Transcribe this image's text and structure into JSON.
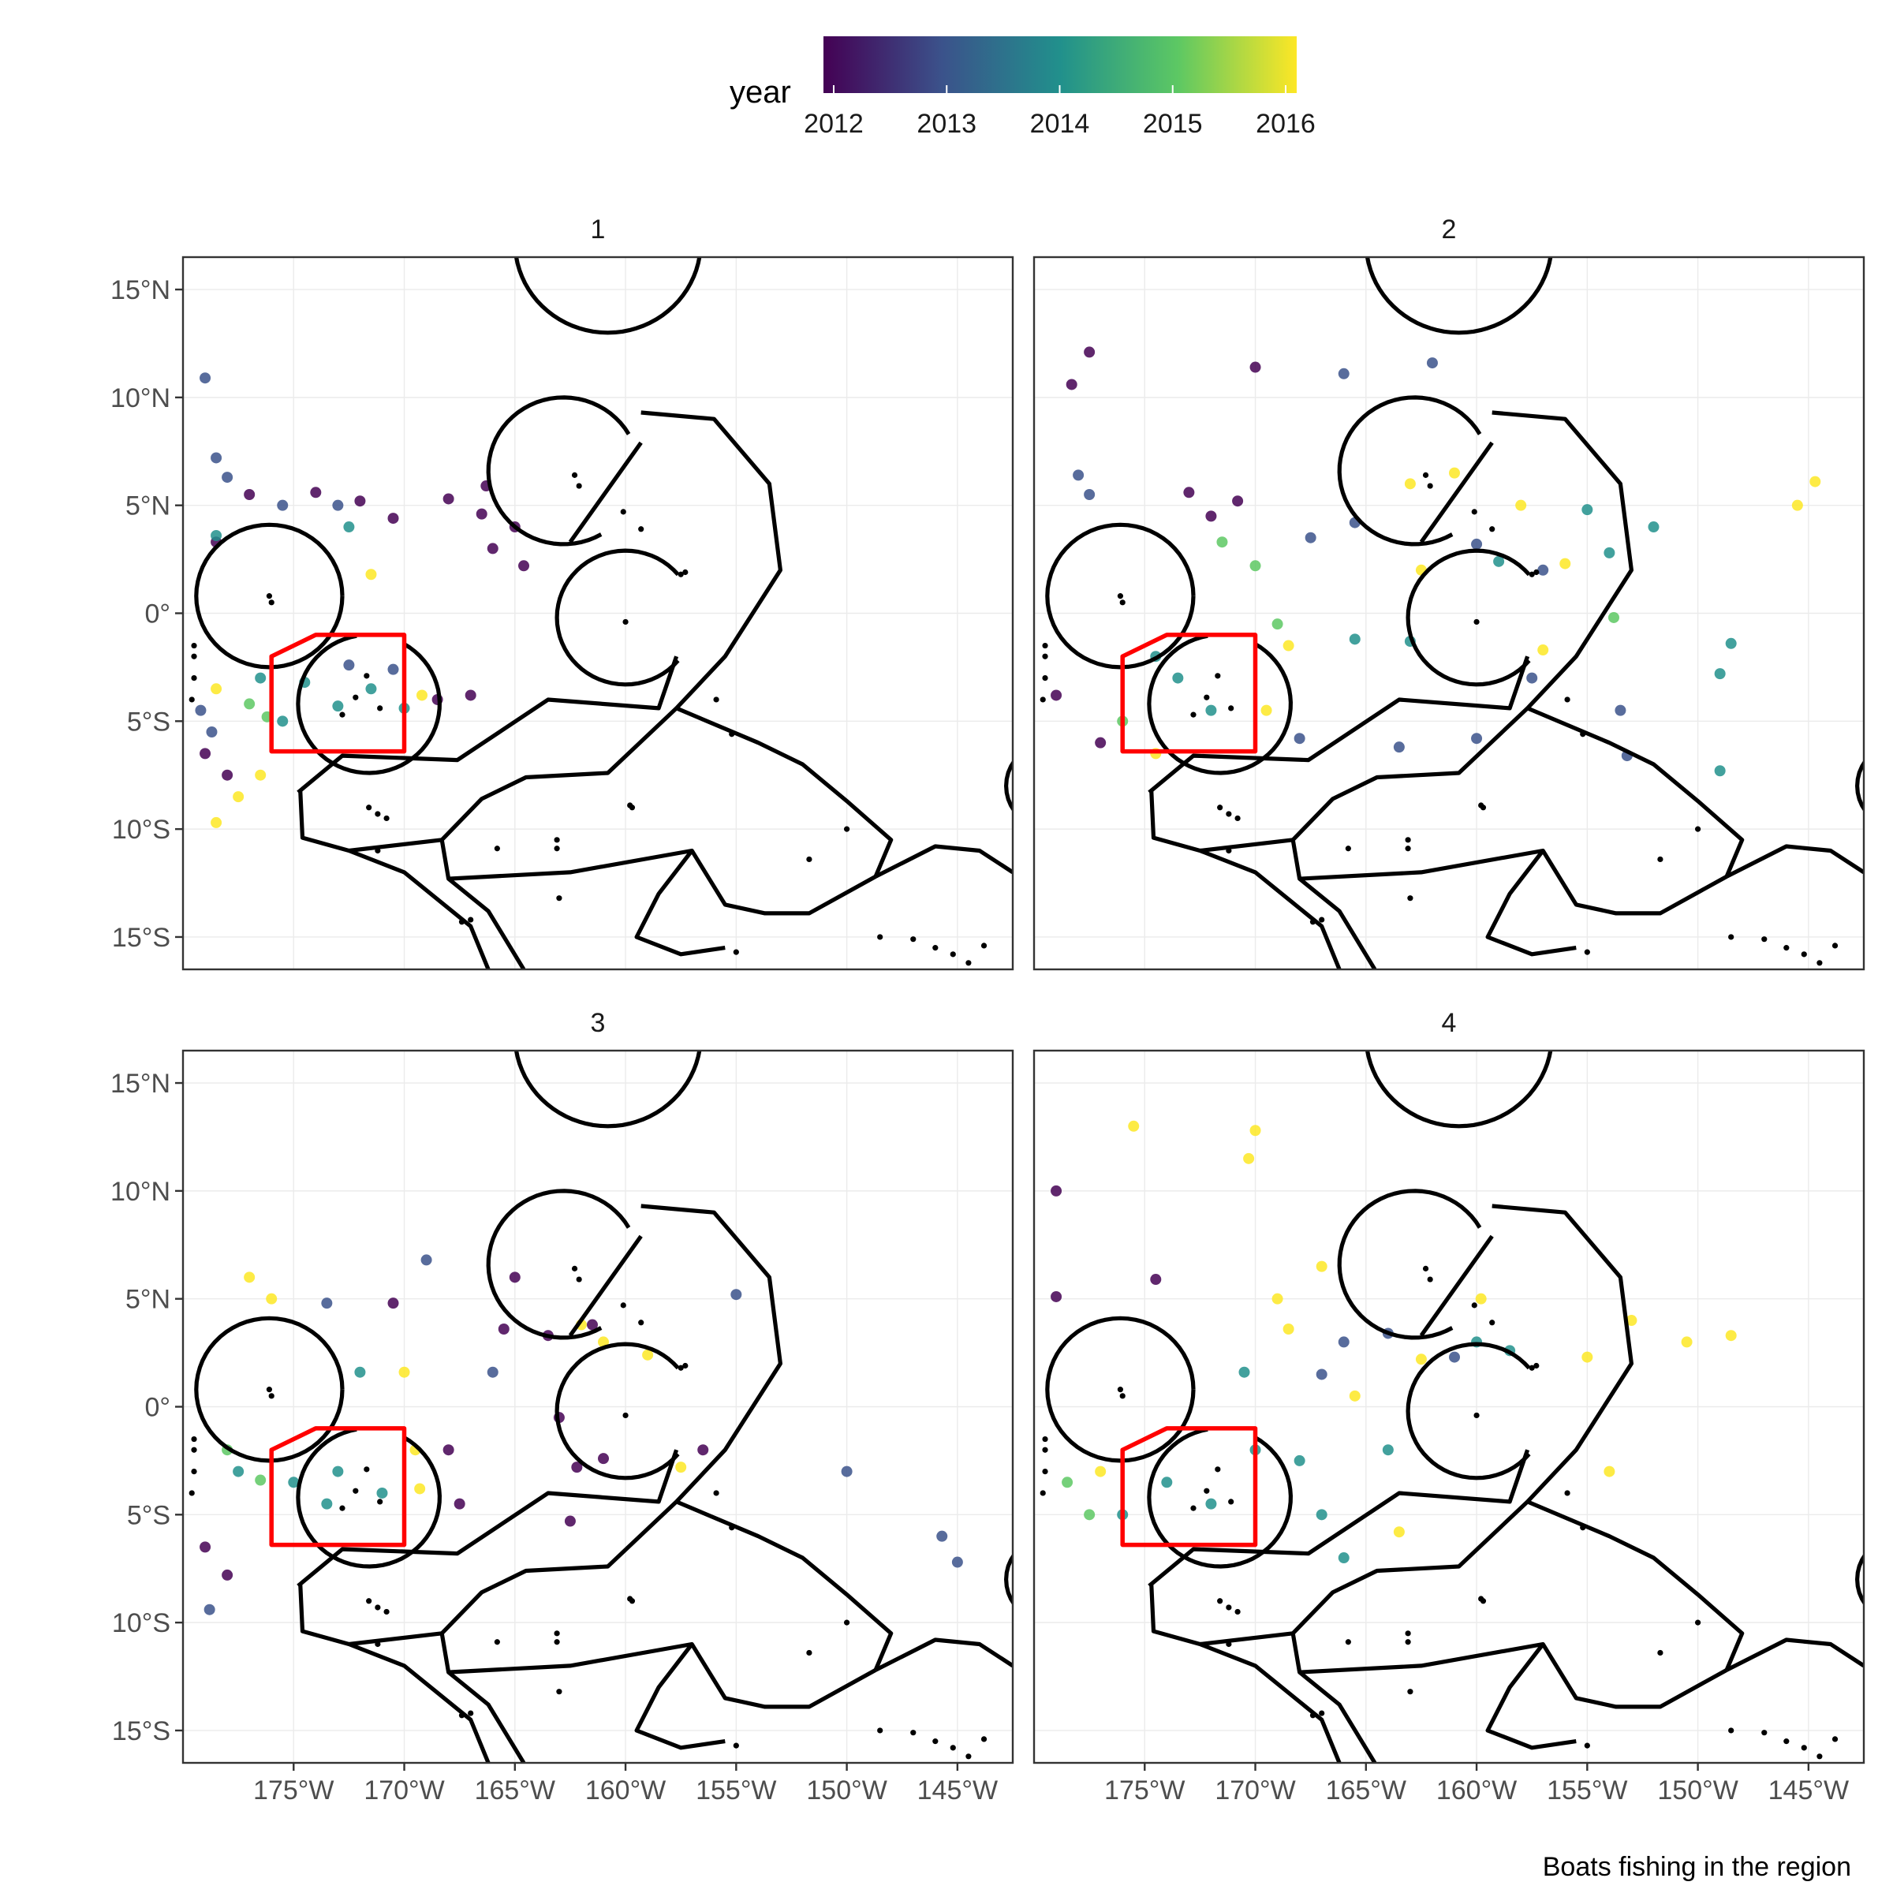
{
  "legend": {
    "title": "year",
    "ticks": [
      "2012",
      "2013",
      "2014",
      "2015",
      "2016"
    ],
    "colors": [
      "#440154",
      "#3b528b",
      "#21908c",
      "#5dc863",
      "#fde725"
    ]
  },
  "caption": "Boats fishing in the region",
  "axes": {
    "x_ticks": [
      "175°W",
      "170°W",
      "165°W",
      "160°W",
      "155°W",
      "150°W",
      "145°W"
    ],
    "y_ticks": [
      "15°N",
      "10°N",
      "5°N",
      "0°",
      "5°S",
      "10°S",
      "15°S"
    ]
  },
  "panels": [
    {
      "label": "1"
    },
    {
      "label": "2"
    },
    {
      "label": "3"
    },
    {
      "label": "4"
    }
  ],
  "map_data": {
    "type": "faceted-map",
    "lon_range": [
      -180,
      -142.5
    ],
    "lat_range": [
      -16.5,
      16.5
    ],
    "red_box": [
      [
        -176,
        -2
      ],
      [
        -174,
        -1
      ],
      [
        -170,
        -1
      ],
      [
        -170,
        -6.4
      ],
      [
        -176,
        -6.4
      ]
    ],
    "colors": {
      "eez_border": "#000000",
      "box": "#ff0000",
      "grid": "#ebebeb"
    },
    "facets": {
      "1": [
        {
          "year": 2012,
          "lon": -174,
          "lat": 5.6
        },
        {
          "year": 2012,
          "lon": -172,
          "lat": 5.2
        },
        {
          "year": 2012,
          "lon": -170.5,
          "lat": 4.4
        },
        {
          "year": 2012,
          "lon": -168,
          "lat": 5.3
        },
        {
          "year": 2012,
          "lon": -166.5,
          "lat": 4.6
        },
        {
          "year": 2012,
          "lon": -166,
          "lat": 3.0
        },
        {
          "year": 2012,
          "lon": -166.3,
          "lat": 5.9
        },
        {
          "year": 2012,
          "lon": -165,
          "lat": 4.0
        },
        {
          "year": 2012,
          "lon": -164.6,
          "lat": 2.2
        },
        {
          "year": 2012,
          "lon": -178.5,
          "lat": 3.3
        },
        {
          "year": 2012,
          "lon": -179,
          "lat": -6.5
        },
        {
          "year": 2012,
          "lon": -178,
          "lat": -7.5
        },
        {
          "year": 2012,
          "lon": -168.5,
          "lat": -4.0
        },
        {
          "year": 2012,
          "lon": -167,
          "lat": -3.8
        },
        {
          "year": 2012,
          "lon": -177,
          "lat": 5.5
        },
        {
          "year": 2013,
          "lon": -179,
          "lat": 10.9
        },
        {
          "year": 2013,
          "lon": -178.5,
          "lat": 7.2
        },
        {
          "year": 2013,
          "lon": -178,
          "lat": 6.3
        },
        {
          "year": 2013,
          "lon": -173,
          "lat": 5.0
        },
        {
          "year": 2013,
          "lon": -178.7,
          "lat": -5.5
        },
        {
          "year": 2013,
          "lon": -179.2,
          "lat": -4.5
        },
        {
          "year": 2013,
          "lon": -170.5,
          "lat": -2.6
        },
        {
          "year": 2013,
          "lon": -172.5,
          "lat": -2.4
        },
        {
          "year": 2013,
          "lon": -175.5,
          "lat": 5.0
        },
        {
          "year": 2014,
          "lon": -172.5,
          "lat": 4.0
        },
        {
          "year": 2014,
          "lon": -174.5,
          "lat": -3.2
        },
        {
          "year": 2014,
          "lon": -173,
          "lat": -4.3
        },
        {
          "year": 2014,
          "lon": -171.5,
          "lat": -3.5
        },
        {
          "year": 2014,
          "lon": -175.5,
          "lat": -5.0
        },
        {
          "year": 2014,
          "lon": -178.5,
          "lat": 3.6
        },
        {
          "year": 2014,
          "lon": -170,
          "lat": -4.4
        },
        {
          "year": 2014,
          "lon": -176.5,
          "lat": -3.0
        },
        {
          "year": 2015,
          "lon": -177,
          "lat": -4.2
        },
        {
          "year": 2015,
          "lon": -176.2,
          "lat": -4.8
        },
        {
          "year": 2016,
          "lon": -178.5,
          "lat": -3.5
        },
        {
          "year": 2016,
          "lon": -177.5,
          "lat": -8.5
        },
        {
          "year": 2016,
          "lon": -178.5,
          "lat": -9.7
        },
        {
          "year": 2016,
          "lon": -176.5,
          "lat": -7.5
        },
        {
          "year": 2016,
          "lon": -171.5,
          "lat": 1.8
        },
        {
          "year": 2016,
          "lon": -169.2,
          "lat": -3.8
        }
      ],
      "2": [
        {
          "year": 2012,
          "lon": -178.3,
          "lat": 10.6
        },
        {
          "year": 2012,
          "lon": -177.5,
          "lat": 12.1
        },
        {
          "year": 2012,
          "lon": -170,
          "lat": 11.4
        },
        {
          "year": 2012,
          "lon": -173,
          "lat": 5.6
        },
        {
          "year": 2012,
          "lon": -170.8,
          "lat": 5.2
        },
        {
          "year": 2012,
          "lon": -172,
          "lat": 4.5
        },
        {
          "year": 2012,
          "lon": -179,
          "lat": -3.8
        },
        {
          "year": 2012,
          "lon": -177,
          "lat": -6.0
        },
        {
          "year": 2013,
          "lon": -178,
          "lat": 6.4
        },
        {
          "year": 2013,
          "lon": -177.5,
          "lat": 5.5
        },
        {
          "year": 2013,
          "lon": -166,
          "lat": 11.1
        },
        {
          "year": 2013,
          "lon": -162,
          "lat": 11.6
        },
        {
          "year": 2013,
          "lon": -167.5,
          "lat": 3.5
        },
        {
          "year": 2013,
          "lon": -165.5,
          "lat": 4.2
        },
        {
          "year": 2013,
          "lon": -160,
          "lat": 3.2
        },
        {
          "year": 2013,
          "lon": -157,
          "lat": 2.0
        },
        {
          "year": 2013,
          "lon": -168,
          "lat": -5.8
        },
        {
          "year": 2013,
          "lon": -163.5,
          "lat": -6.2
        },
        {
          "year": 2013,
          "lon": -160,
          "lat": -5.8
        },
        {
          "year": 2013,
          "lon": -153.5,
          "lat": -4.5
        },
        {
          "year": 2013,
          "lon": -153.2,
          "lat": -6.6
        },
        {
          "year": 2013,
          "lon": -157.5,
          "lat": -3.0
        },
        {
          "year": 2014,
          "lon": -173.5,
          "lat": -3.0
        },
        {
          "year": 2014,
          "lon": -172,
          "lat": -4.5
        },
        {
          "year": 2014,
          "lon": -174.5,
          "lat": -2.0
        },
        {
          "year": 2014,
          "lon": -165.5,
          "lat": -1.2
        },
        {
          "year": 2014,
          "lon": -163,
          "lat": -1.3
        },
        {
          "year": 2014,
          "lon": -159,
          "lat": 2.4
        },
        {
          "year": 2014,
          "lon": -155,
          "lat": 4.8
        },
        {
          "year": 2014,
          "lon": -152,
          "lat": 4.0
        },
        {
          "year": 2014,
          "lon": -154,
          "lat": 2.8
        },
        {
          "year": 2014,
          "lon": -148.5,
          "lat": -1.4
        },
        {
          "year": 2014,
          "lon": -149,
          "lat": -2.8
        },
        {
          "year": 2014,
          "lon": -149,
          "lat": -7.3
        },
        {
          "year": 2015,
          "lon": -170,
          "lat": 2.2
        },
        {
          "year": 2015,
          "lon": -169,
          "lat": -0.5
        },
        {
          "year": 2015,
          "lon": -176,
          "lat": -5.0
        },
        {
          "year": 2015,
          "lon": -171.5,
          "lat": 3.3
        },
        {
          "year": 2015,
          "lon": -153.8,
          "lat": -0.2
        },
        {
          "year": 2016,
          "lon": -163,
          "lat": 6.0
        },
        {
          "year": 2016,
          "lon": -161,
          "lat": 6.5
        },
        {
          "year": 2016,
          "lon": -158,
          "lat": 5.0
        },
        {
          "year": 2016,
          "lon": -156,
          "lat": 2.3
        },
        {
          "year": 2016,
          "lon": -144.7,
          "lat": 6.1
        },
        {
          "year": 2016,
          "lon": -145.5,
          "lat": 5.0
        },
        {
          "year": 2016,
          "lon": -168.5,
          "lat": -1.5
        },
        {
          "year": 2016,
          "lon": -169.5,
          "lat": -4.5
        },
        {
          "year": 2016,
          "lon": -174.5,
          "lat": -6.5
        },
        {
          "year": 2016,
          "lon": -157,
          "lat": -1.7
        },
        {
          "year": 2016,
          "lon": -162.5,
          "lat": 2.0
        }
      ],
      "3": [
        {
          "year": 2012,
          "lon": -170.5,
          "lat": 4.8
        },
        {
          "year": 2012,
          "lon": -165,
          "lat": 6.0
        },
        {
          "year": 2012,
          "lon": -165.5,
          "lat": 3.6
        },
        {
          "year": 2012,
          "lon": -163.5,
          "lat": 3.3
        },
        {
          "year": 2012,
          "lon": -161.5,
          "lat": 3.8
        },
        {
          "year": 2012,
          "lon": -168,
          "lat": -2.0
        },
        {
          "year": 2012,
          "lon": -167.5,
          "lat": -4.5
        },
        {
          "year": 2012,
          "lon": -163,
          "lat": -0.5
        },
        {
          "year": 2012,
          "lon": -162.2,
          "lat": -2.8
        },
        {
          "year": 2012,
          "lon": -162.5,
          "lat": -5.3
        },
        {
          "year": 2012,
          "lon": -161,
          "lat": -2.4
        },
        {
          "year": 2012,
          "lon": -156.5,
          "lat": -2.0
        },
        {
          "year": 2012,
          "lon": -179,
          "lat": -6.5
        },
        {
          "year": 2012,
          "lon": -178,
          "lat": -7.8
        },
        {
          "year": 2013,
          "lon": -169,
          "lat": 6.8
        },
        {
          "year": 2013,
          "lon": -173.5,
          "lat": 4.8
        },
        {
          "year": 2013,
          "lon": -155,
          "lat": 5.2
        },
        {
          "year": 2013,
          "lon": -150,
          "lat": -3.0
        },
        {
          "year": 2013,
          "lon": -145.7,
          "lat": -6.0
        },
        {
          "year": 2013,
          "lon": -145,
          "lat": -7.2
        },
        {
          "year": 2013,
          "lon": -178.8,
          "lat": -9.4
        },
        {
          "year": 2013,
          "lon": -166,
          "lat": 1.6
        },
        {
          "year": 2014,
          "lon": -173,
          "lat": -3.0
        },
        {
          "year": 2014,
          "lon": -171,
          "lat": -4.0
        },
        {
          "year": 2014,
          "lon": -173.5,
          "lat": -4.5
        },
        {
          "year": 2014,
          "lon": -172,
          "lat": 1.6
        },
        {
          "year": 2014,
          "lon": -175,
          "lat": -3.5
        },
        {
          "year": 2014,
          "lon": -177.5,
          "lat": -3.0
        },
        {
          "year": 2015,
          "lon": -178,
          "lat": -2.0
        },
        {
          "year": 2015,
          "lon": -176.5,
          "lat": -3.4
        },
        {
          "year": 2016,
          "lon": -177,
          "lat": 6.0
        },
        {
          "year": 2016,
          "lon": -176,
          "lat": 5.0
        },
        {
          "year": 2016,
          "lon": -170,
          "lat": 1.6
        },
        {
          "year": 2016,
          "lon": -169.5,
          "lat": -2.0
        },
        {
          "year": 2016,
          "lon": -169.3,
          "lat": -3.8
        },
        {
          "year": 2016,
          "lon": -161,
          "lat": 3.0
        },
        {
          "year": 2016,
          "lon": -159,
          "lat": 2.4
        },
        {
          "year": 2016,
          "lon": -157.5,
          "lat": -2.8
        },
        {
          "year": 2016,
          "lon": -162,
          "lat": 3.8
        }
      ],
      "4": [
        {
          "year": 2012,
          "lon": -179,
          "lat": 10.0
        },
        {
          "year": 2012,
          "lon": -174.5,
          "lat": 5.9
        },
        {
          "year": 2012,
          "lon": -179,
          "lat": 5.1
        },
        {
          "year": 2013,
          "lon": -166,
          "lat": 3.0
        },
        {
          "year": 2013,
          "lon": -164,
          "lat": 3.4
        },
        {
          "year": 2013,
          "lon": -161,
          "lat": 2.3
        },
        {
          "year": 2013,
          "lon": -167,
          "lat": 1.5
        },
        {
          "year": 2014,
          "lon": -174,
          "lat": -3.5
        },
        {
          "year": 2014,
          "lon": -172,
          "lat": -4.5
        },
        {
          "year": 2014,
          "lon": -170,
          "lat": -2.0
        },
        {
          "year": 2014,
          "lon": -168,
          "lat": -2.5
        },
        {
          "year": 2014,
          "lon": -164,
          "lat": -2.0
        },
        {
          "year": 2014,
          "lon": -167,
          "lat": -5.0
        },
        {
          "year": 2014,
          "lon": -160,
          "lat": 3.0
        },
        {
          "year": 2014,
          "lon": -158.5,
          "lat": 2.6
        },
        {
          "year": 2014,
          "lon": -166,
          "lat": -7.0
        },
        {
          "year": 2014,
          "lon": -170.5,
          "lat": 1.6
        },
        {
          "year": 2014,
          "lon": -176,
          "lat": -5.0
        },
        {
          "year": 2015,
          "lon": -178.5,
          "lat": -3.5
        },
        {
          "year": 2015,
          "lon": -177.5,
          "lat": -5.0
        },
        {
          "year": 2016,
          "lon": -175.5,
          "lat": 13.0
        },
        {
          "year": 2016,
          "lon": -170,
          "lat": 12.8
        },
        {
          "year": 2016,
          "lon": -170.3,
          "lat": 11.5
        },
        {
          "year": 2016,
          "lon": -167,
          "lat": 6.5
        },
        {
          "year": 2016,
          "lon": -169,
          "lat": 5.0
        },
        {
          "year": 2016,
          "lon": -168.5,
          "lat": 3.6
        },
        {
          "year": 2016,
          "lon": -162.5,
          "lat": 2.2
        },
        {
          "year": 2016,
          "lon": -159.8,
          "lat": 5.0
        },
        {
          "year": 2016,
          "lon": -153,
          "lat": 4.0
        },
        {
          "year": 2016,
          "lon": -150.5,
          "lat": 3.0
        },
        {
          "year": 2016,
          "lon": -148.5,
          "lat": 3.3
        },
        {
          "year": 2016,
          "lon": -155,
          "lat": 2.3
        },
        {
          "year": 2016,
          "lon": -163.5,
          "lat": -5.8
        },
        {
          "year": 2016,
          "lon": -154,
          "lat": -3.0
        },
        {
          "year": 2016,
          "lon": -165.5,
          "lat": 0.5
        },
        {
          "year": 2016,
          "lon": -177,
          "lat": -3.0
        }
      ]
    }
  }
}
